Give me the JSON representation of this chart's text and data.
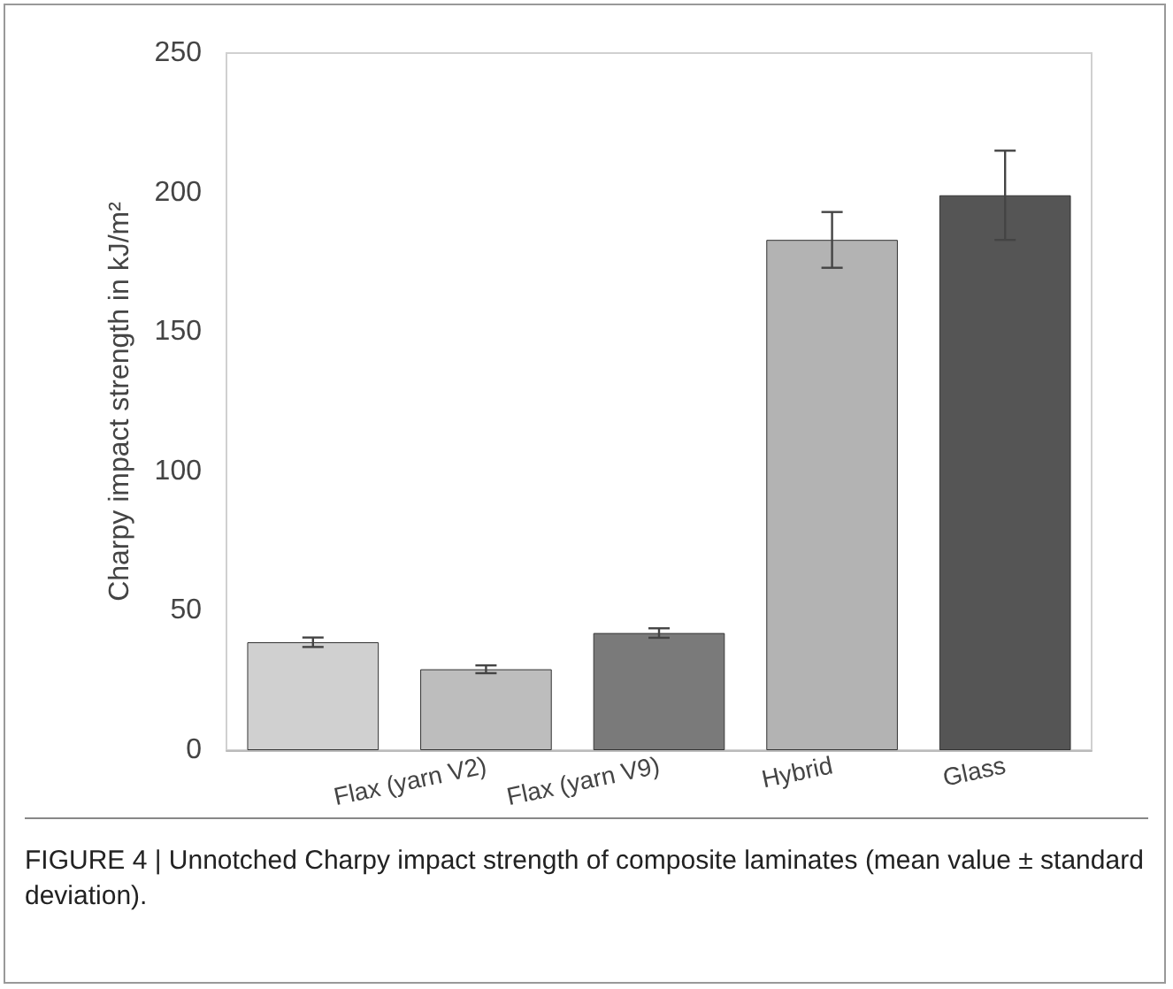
{
  "chart_data": {
    "type": "bar",
    "categories": [
      null,
      "Flax (yarn V2)",
      "Flax (yarn V9)",
      "Hybrid",
      "Glass"
    ],
    "values": [
      38.7,
      29,
      42,
      183,
      199
    ],
    "errors": [
      1.7,
      1.4,
      1.7,
      10,
      16
    ],
    "colors": [
      "#d0d0d0",
      "#bdbdbd",
      "#7a7a7a",
      "#b3b3b3",
      "#555555"
    ],
    "ylabel": "Charpy impact strength in kJ/m²",
    "ylim": [
      0,
      250
    ],
    "yticks": [
      0,
      50,
      100,
      150,
      200,
      250
    ],
    "annotations": [
      "FIGURE 4 | Unnotched Charpy impact strength of composite laminates (mean value ± standard deviation)."
    ]
  }
}
